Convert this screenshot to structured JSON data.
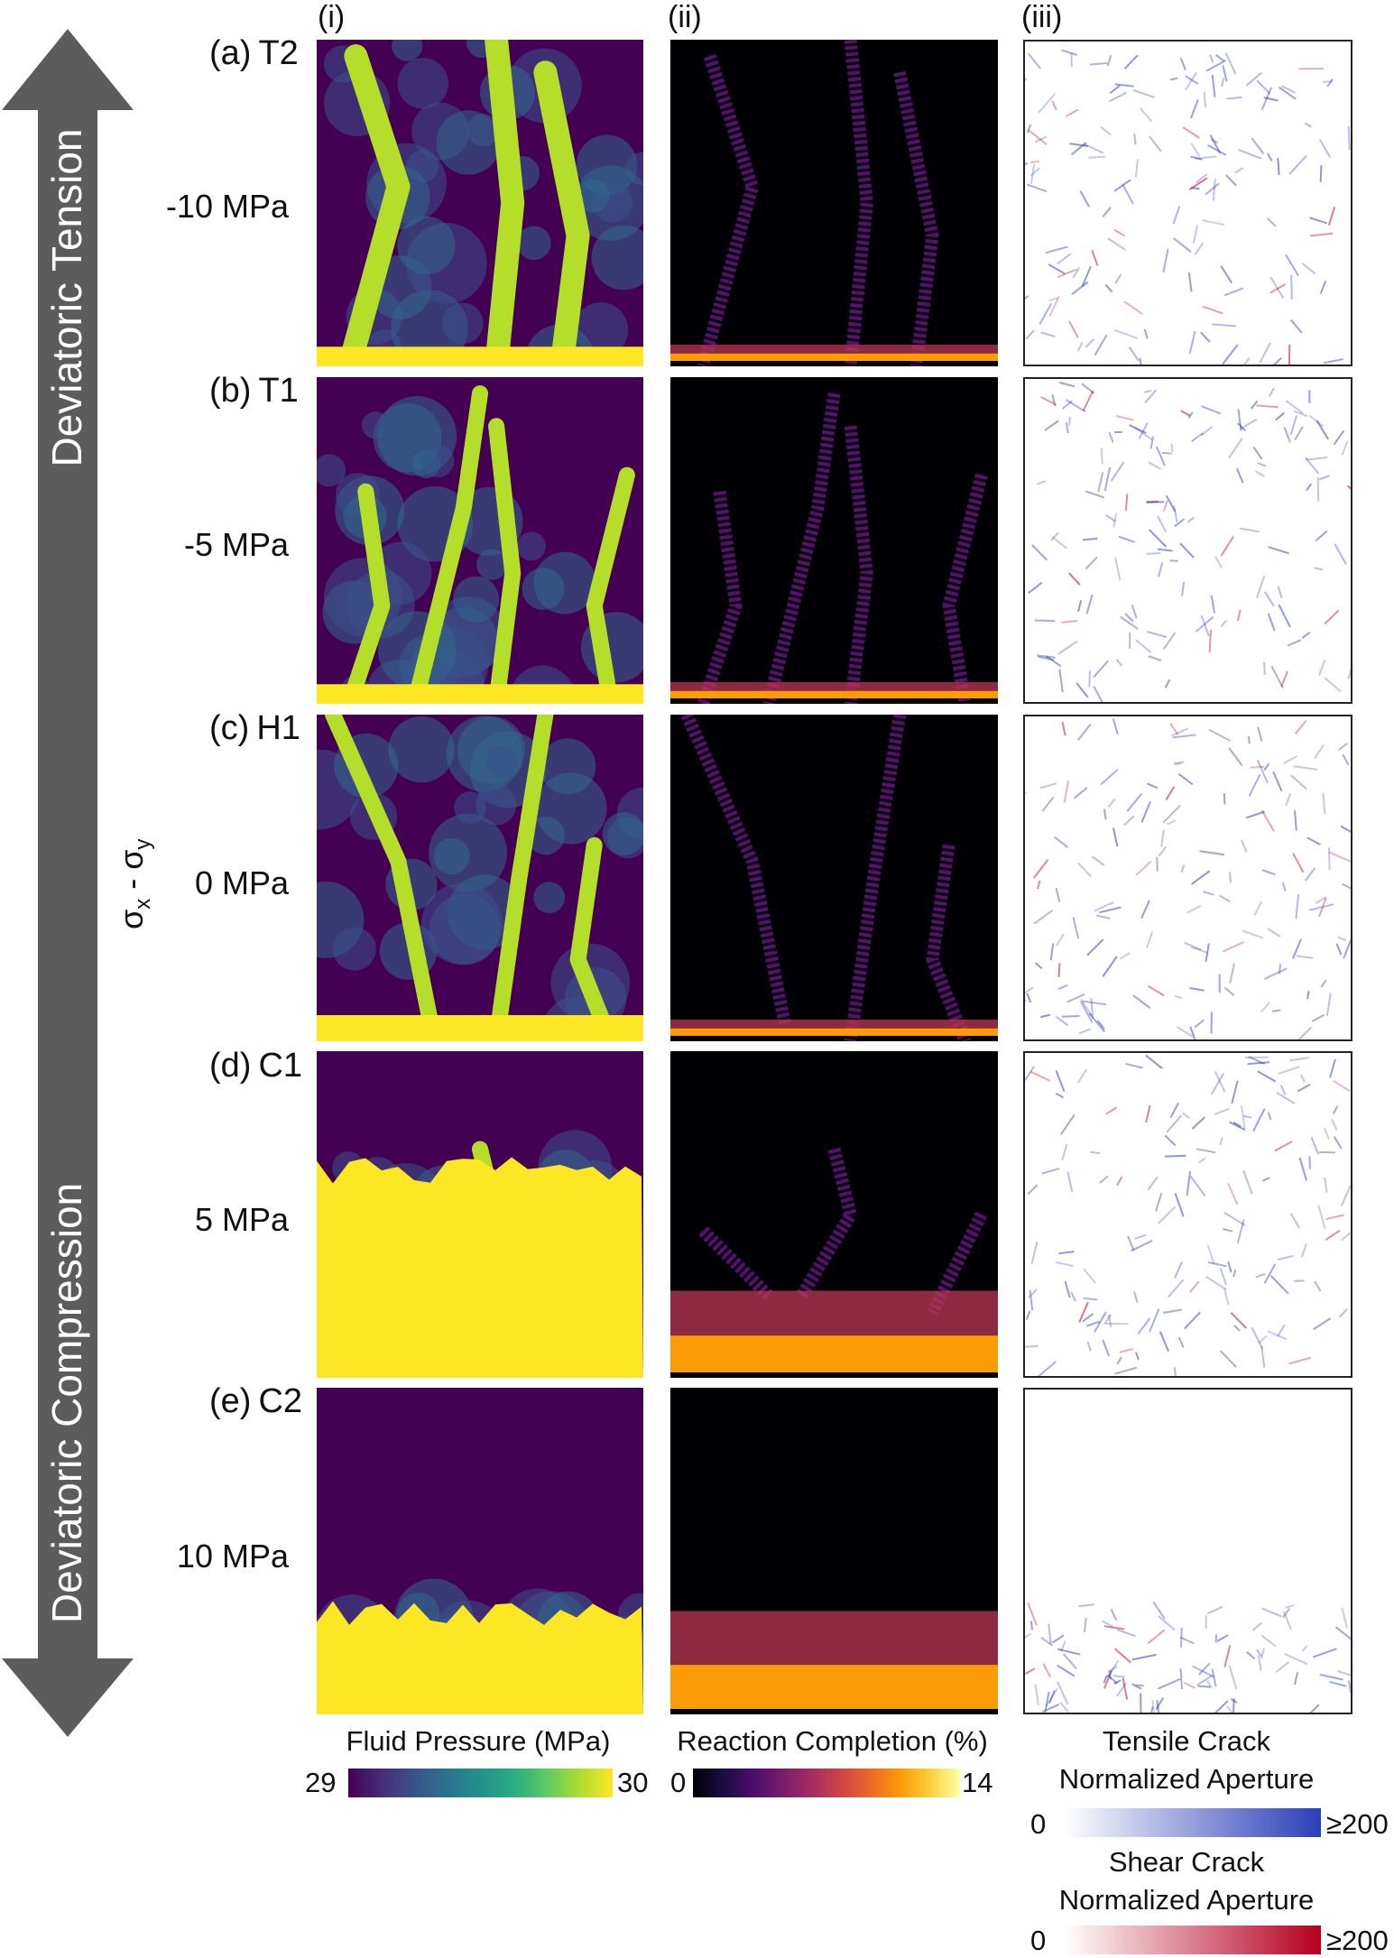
{
  "arrow": {
    "top_label": "Deviatoric Tension",
    "bottom_label": "Deviatoric Compression",
    "color": "#5c5c5c"
  },
  "axis_label": {
    "main": "σ",
    "sub1": "x",
    "dash": " - σ",
    "sub2": "y"
  },
  "columns": [
    "(i)",
    "(ii)",
    "(iii)"
  ],
  "rows": [
    {
      "label": "(a)",
      "code": "T2",
      "stress": "-10 MPa"
    },
    {
      "label": "(b)",
      "code": "T1",
      "stress": "-5 MPa"
    },
    {
      "label": "(c)",
      "code": "H1",
      "stress": "0 MPa"
    },
    {
      "label": "(d)",
      "code": "C1",
      "stress": "5 MPa"
    },
    {
      "label": "(e)",
      "code": "C2",
      "stress": "10 MPa"
    }
  ],
  "colorbars": {
    "pressure": {
      "title": "Fluid Pressure (MPa)",
      "min": "29",
      "max": "30"
    },
    "reaction": {
      "title": "Reaction Completion (%)",
      "min": "0",
      "max": "14"
    },
    "tensile": {
      "title_line1": "Tensile Crack",
      "title_line2": "Normalized Aperture",
      "min": "0",
      "max": "≥200"
    },
    "shear": {
      "title_line1": "Shear Crack",
      "title_line2": "Normalized Aperture",
      "min": "0",
      "max": "≥200"
    }
  },
  "colors": {
    "viridis_low": "#440154",
    "viridis_mid": "#21918c",
    "viridis_high": "#fde725",
    "inferno_low": "#000004",
    "inferno_mid": "#bc3754",
    "inferno_high": "#fcffa4",
    "tensile": "#2b3fb8",
    "shear": "#b5001f"
  }
}
